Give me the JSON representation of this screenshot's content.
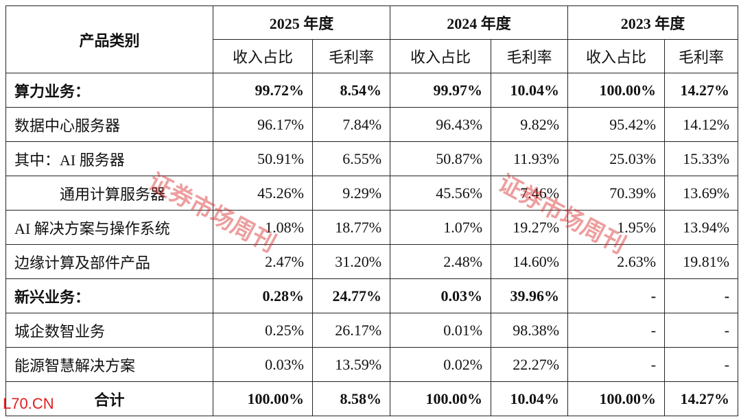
{
  "table": {
    "header": {
      "category": "产品类别",
      "years": [
        "2025 年度",
        "2024 年度",
        "2023 年度"
      ],
      "subheaders": [
        "收入占比",
        "毛利率",
        "收入占比",
        "毛利率",
        "收入占比",
        "毛利率"
      ]
    },
    "rows": [
      {
        "label": "算力业务：",
        "cells": [
          "99.72%",
          "8.54%",
          "99.97%",
          "10.04%",
          "100.00%",
          "14.27%"
        ]
      },
      {
        "label": "数据中心服务器",
        "cells": [
          "96.17%",
          "7.84%",
          "96.43%",
          "9.82%",
          "95.42%",
          "14.12%"
        ]
      },
      {
        "label": "其中：AI 服务器",
        "cells": [
          "50.91%",
          "6.55%",
          "50.87%",
          "11.93%",
          "25.03%",
          "15.33%"
        ]
      },
      {
        "label": "通用计算服务器",
        "cells": [
          "45.26%",
          "9.29%",
          "45.56%",
          "7.46%",
          "70.39%",
          "13.69%"
        ]
      },
      {
        "label": "AI 解决方案与操作系统",
        "cells": [
          "1.08%",
          "18.77%",
          "1.07%",
          "19.27%",
          "1.95%",
          "13.94%"
        ]
      },
      {
        "label": "边缘计算及部件产品",
        "cells": [
          "2.47%",
          "31.20%",
          "2.48%",
          "14.60%",
          "2.63%",
          "19.81%"
        ]
      },
      {
        "label": "新兴业务：",
        "cells": [
          "0.28%",
          "24.77%",
          "0.03%",
          "39.96%",
          "-",
          "-"
        ]
      },
      {
        "label": "城企数智业务",
        "cells": [
          "0.25%",
          "26.17%",
          "0.01%",
          "98.38%",
          "-",
          "-"
        ]
      },
      {
        "label": "能源智慧解决方案",
        "cells": [
          "0.03%",
          "13.59%",
          "0.02%",
          "22.27%",
          "-",
          "-"
        ]
      },
      {
        "label": "合计",
        "cells": [
          "100.00%",
          "8.58%",
          "100.00%",
          "10.04%",
          "100.00%",
          "14.27%"
        ]
      }
    ]
  },
  "watermarks": [
    "证券市场周刊",
    "证券市场周刊"
  ],
  "site_mark": "L70.CN"
}
